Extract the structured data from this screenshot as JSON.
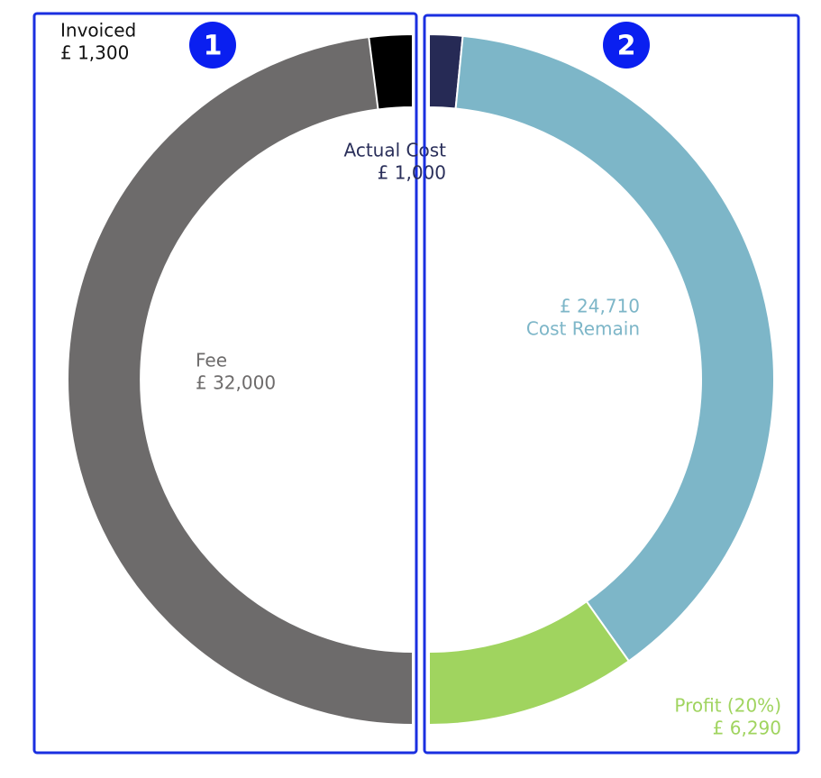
{
  "chart_data": [
    {
      "type": "half-donut",
      "panel": "1",
      "side": "left",
      "segments": [
        {
          "name": "Fee",
          "value": 32000,
          "value_label": "£ 32,000",
          "color": "#6d6b6b"
        },
        {
          "name": "Invoiced",
          "value": 1300,
          "value_label": "£ 1,300",
          "color": "#000000"
        }
      ]
    },
    {
      "type": "half-donut",
      "panel": "2",
      "side": "right",
      "segments": [
        {
          "name": "Actual Cost",
          "value": 1000,
          "value_label": "£ 1,000",
          "color": "#262a55"
        },
        {
          "name": "Cost Remain",
          "value": 24710,
          "value_label": "£ 24,710",
          "color": "#7db6c8"
        },
        {
          "name": "Profit (20%)",
          "value": 6290,
          "value_label": "£ 6,290",
          "color": "#a0d45f"
        }
      ]
    }
  ]
}
